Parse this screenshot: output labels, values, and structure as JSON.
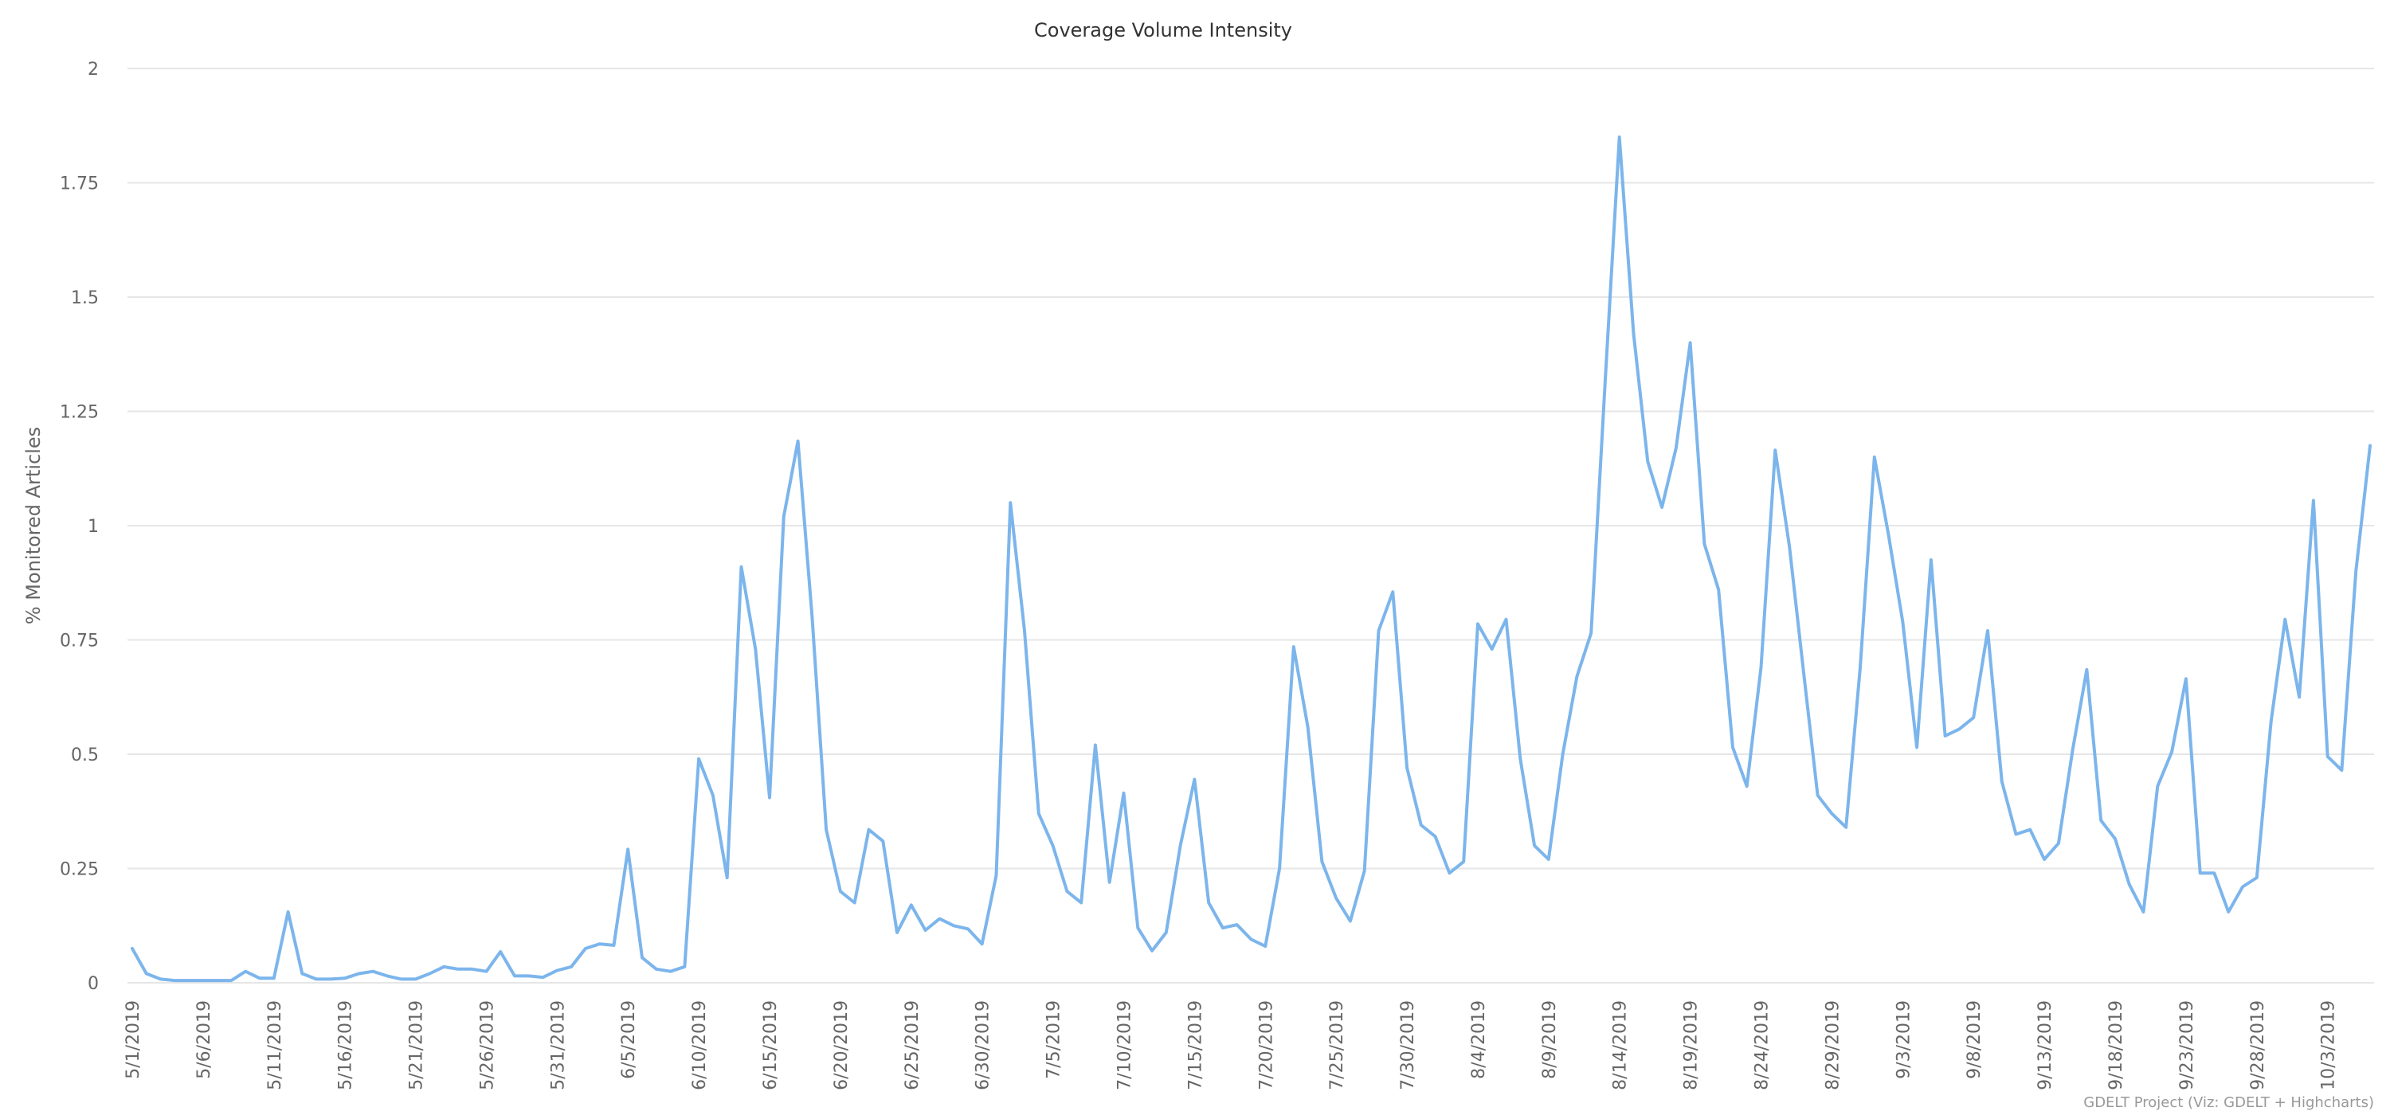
{
  "chart_data": {
    "type": "line",
    "title": "Coverage Volume Intensity",
    "ylabel": "% Monitored Articles",
    "xlabel": "",
    "ylim": [
      0,
      2
    ],
    "yticks": [
      "0",
      "0.25",
      "0.5",
      "0.75",
      "1",
      "1.25",
      "1.5",
      "1.75",
      "2"
    ],
    "grid": true,
    "legend": "none",
    "color": "#7cb5ec",
    "x": [
      "5/1/2019",
      "5/2/2019",
      "5/3/2019",
      "5/4/2019",
      "5/5/2019",
      "5/6/2019",
      "5/7/2019",
      "5/8/2019",
      "5/9/2019",
      "5/10/2019",
      "5/11/2019",
      "5/12/2019",
      "5/13/2019",
      "5/14/2019",
      "5/15/2019",
      "5/16/2019",
      "5/17/2019",
      "5/18/2019",
      "5/19/2019",
      "5/20/2019",
      "5/21/2019",
      "5/22/2019",
      "5/23/2019",
      "5/24/2019",
      "5/25/2019",
      "5/26/2019",
      "5/27/2019",
      "5/28/2019",
      "5/29/2019",
      "5/30/2019",
      "5/31/2019",
      "6/1/2019",
      "6/2/2019",
      "6/3/2019",
      "6/4/2019",
      "6/5/2019",
      "6/6/2019",
      "6/7/2019",
      "6/8/2019",
      "6/9/2019",
      "6/10/2019",
      "6/11/2019",
      "6/12/2019",
      "6/13/2019",
      "6/14/2019",
      "6/15/2019",
      "6/16/2019",
      "6/17/2019",
      "6/18/2019",
      "6/19/2019",
      "6/20/2019",
      "6/21/2019",
      "6/22/2019",
      "6/23/2019",
      "6/24/2019",
      "6/25/2019",
      "6/26/2019",
      "6/27/2019",
      "6/28/2019",
      "6/29/2019",
      "6/30/2019",
      "7/1/2019",
      "7/2/2019",
      "7/3/2019",
      "7/4/2019",
      "7/5/2019",
      "7/6/2019",
      "7/7/2019",
      "7/8/2019",
      "7/9/2019",
      "7/10/2019",
      "7/11/2019",
      "7/12/2019",
      "7/13/2019",
      "7/14/2019",
      "7/15/2019",
      "7/16/2019",
      "7/17/2019",
      "7/18/2019",
      "7/19/2019",
      "7/20/2019",
      "7/21/2019",
      "7/22/2019",
      "7/23/2019",
      "7/24/2019",
      "7/25/2019",
      "7/26/2019",
      "7/27/2019",
      "7/28/2019",
      "7/29/2019",
      "7/30/2019",
      "7/31/2019",
      "8/1/2019",
      "8/2/2019",
      "8/3/2019",
      "8/4/2019",
      "8/5/2019",
      "8/6/2019",
      "8/7/2019",
      "8/8/2019",
      "8/9/2019",
      "8/10/2019",
      "8/11/2019",
      "8/12/2019",
      "8/13/2019",
      "8/14/2019",
      "8/15/2019",
      "8/16/2019",
      "8/17/2019",
      "8/18/2019",
      "8/19/2019",
      "8/20/2019",
      "8/21/2019",
      "8/22/2019",
      "8/23/2019",
      "8/24/2019",
      "8/25/2019",
      "8/26/2019",
      "8/27/2019",
      "8/28/2019",
      "8/29/2019",
      "8/30/2019",
      "8/31/2019",
      "9/1/2019",
      "9/2/2019",
      "9/3/2019",
      "9/4/2019",
      "9/5/2019",
      "9/6/2019",
      "9/7/2019",
      "9/8/2019",
      "9/9/2019",
      "9/10/2019",
      "9/11/2019",
      "9/12/2019",
      "9/13/2019",
      "9/14/2019",
      "9/15/2019",
      "9/16/2019",
      "9/17/2019",
      "9/18/2019",
      "9/19/2019",
      "9/20/2019",
      "9/21/2019",
      "9/22/2019",
      "9/23/2019",
      "9/24/2019",
      "9/25/2019",
      "9/26/2019",
      "9/27/2019",
      "9/28/2019",
      "9/29/2019",
      "9/30/2019",
      "10/1/2019",
      "10/2/2019",
      "10/3/2019",
      "10/4/2019",
      "10/5/2019",
      "10/6/2019"
    ],
    "xticks": [
      "5/1/2019",
      "5/6/2019",
      "5/11/2019",
      "5/16/2019",
      "5/21/2019",
      "5/26/2019",
      "5/31/2019",
      "6/5/2019",
      "6/10/2019",
      "6/15/2019",
      "6/20/2019",
      "6/25/2019",
      "6/30/2019",
      "7/5/2019",
      "7/10/2019",
      "7/15/2019",
      "7/20/2019",
      "7/25/2019",
      "7/30/2019",
      "8/4/2019",
      "8/9/2019",
      "8/14/2019",
      "8/19/2019",
      "8/24/2019",
      "8/29/2019",
      "9/3/2019",
      "9/8/2019",
      "9/13/2019",
      "9/18/2019",
      "9/23/2019",
      "9/28/2019",
      "10/3/2019"
    ],
    "values": [
      0.075,
      0.02,
      0.008,
      0.005,
      0.005,
      0.005,
      0.005,
      0.005,
      0.025,
      0.01,
      0.01,
      0.155,
      0.02,
      0.008,
      0.008,
      0.01,
      0.02,
      0.025,
      0.015,
      0.008,
      0.008,
      0.02,
      0.035,
      0.03,
      0.03,
      0.025,
      0.068,
      0.015,
      0.015,
      0.012,
      0.027,
      0.035,
      0.075,
      0.085,
      0.082,
      0.292,
      0.055,
      0.03,
      0.025,
      0.035,
      0.49,
      0.41,
      0.23,
      0.91,
      0.73,
      0.405,
      1.02,
      1.185,
      0.8,
      0.335,
      0.2,
      0.175,
      0.335,
      0.31,
      0.11,
      0.17,
      0.115,
      0.14,
      0.125,
      0.118,
      0.085,
      0.235,
      1.05,
      0.77,
      0.37,
      0.3,
      0.2,
      0.175,
      0.52,
      0.22,
      0.415,
      0.12,
      0.07,
      0.11,
      0.3,
      0.445,
      0.175,
      0.12,
      0.127,
      0.095,
      0.08,
      0.25,
      0.735,
      0.56,
      0.265,
      0.185,
      0.135,
      0.245,
      0.77,
      0.855,
      0.47,
      0.345,
      0.32,
      0.24,
      0.265,
      0.785,
      0.73,
      0.795,
      0.49,
      0.3,
      0.27,
      0.5,
      0.67,
      0.765,
      1.32,
      1.85,
      1.42,
      1.14,
      1.04,
      1.17,
      1.4,
      0.96,
      0.86,
      0.515,
      0.43,
      0.69,
      1.165,
      0.955,
      0.68,
      0.41,
      0.37,
      0.34,
      0.69,
      1.15,
      0.98,
      0.79,
      0.515,
      0.925,
      0.54,
      0.555,
      0.58,
      0.77,
      0.44,
      0.325,
      0.335,
      0.27,
      0.305,
      0.51,
      0.685,
      0.355,
      0.315,
      0.215,
      0.155,
      0.43,
      0.505,
      0.665,
      0.24,
      0.24,
      0.155,
      0.21,
      0.23,
      0.57,
      0.795,
      0.625,
      1.055,
      0.495,
      0.465,
      0.9,
      1.175
    ]
  },
  "credit": "GDELT Project (Viz: GDELT + Highcharts)"
}
